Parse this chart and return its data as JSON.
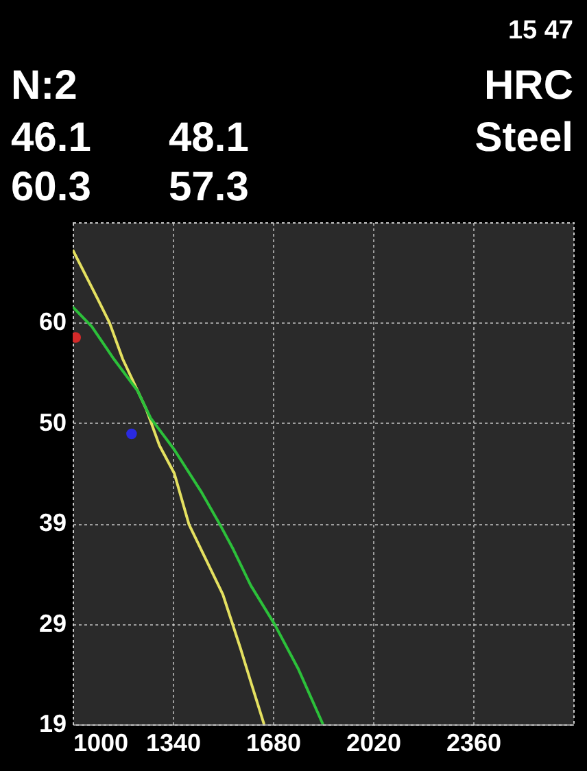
{
  "chart_data": {
    "type": "line",
    "annotations": [
      "15 47",
      "N:2",
      "HRC",
      "46.1",
      "48.1",
      "Steel",
      "60.3",
      "57.3"
    ],
    "xlim": [
      1000,
      2700
    ],
    "xticks": [
      1000,
      1340,
      1680,
      2020,
      2360
    ],
    "ylim": [
      19,
      70
    ],
    "yticks": [
      19,
      {
        "value": 29.2,
        "label": "29"
      },
      {
        "value": 39.4,
        "label": "39"
      },
      {
        "value": 49.6,
        "label": "50"
      },
      {
        "value": 59.8,
        "label": "60"
      }
    ],
    "grid": true,
    "series": [
      {
        "color": "#e4e060",
        "x": [
          1000,
          1085,
          1125,
          1170,
          1250,
          1295,
          1345,
          1395,
          1450,
          1510,
          1570,
          1605,
          1650
        ],
        "values": [
          67.2,
          62.2,
          59.8,
          56.1,
          51.0,
          47.3,
          44.5,
          39.3,
          35.9,
          32.2,
          26.7,
          23.3,
          19.0
        ]
      },
      {
        "color": "#2cc03a",
        "x": [
          1000,
          1065,
          1140,
          1220,
          1265,
          1345,
          1435,
          1500,
          1545,
          1605,
          1685,
          1765,
          1850
        ],
        "values": [
          61.4,
          59.4,
          56.1,
          52.9,
          50.1,
          46.9,
          42.7,
          39.3,
          36.8,
          33.1,
          29.2,
          24.7,
          19.0
        ]
      },
      {
        "type": "scatter",
        "marker": "circle",
        "color": "#d42a2a",
        "x": [
          1010
        ],
        "values": [
          58.3
        ]
      },
      {
        "type": "scatter",
        "marker": "circle",
        "color": "#2a2ae0",
        "x": [
          1200
        ],
        "values": [
          48.5
        ]
      }
    ]
  }
}
